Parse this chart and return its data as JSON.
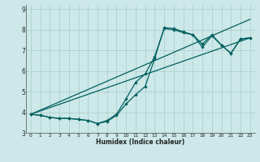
{
  "title": "",
  "xlabel": "Humidex (Indice chaleur)",
  "bg_color": "#cce8e8",
  "grid_color": "#aacaca",
  "line_color": "#006060",
  "xlim": [
    -0.5,
    23.5
  ],
  "ylim": [
    3,
    9.2
  ],
  "yticks": [
    3,
    4,
    5,
    6,
    7,
    8,
    9
  ],
  "xticks": [
    0,
    1,
    2,
    3,
    4,
    5,
    6,
    7,
    8,
    9,
    10,
    11,
    12,
    13,
    14,
    15,
    16,
    17,
    18,
    19,
    20,
    21,
    22,
    23
  ],
  "series1_x": [
    0,
    1,
    2,
    3,
    4,
    5,
    6,
    7,
    8,
    9,
    10,
    11,
    12,
    13,
    14,
    15,
    16,
    17,
    18,
    19,
    20,
    21,
    22,
    23
  ],
  "series1_y": [
    3.9,
    3.85,
    3.75,
    3.7,
    3.7,
    3.65,
    3.6,
    3.45,
    3.6,
    3.9,
    4.65,
    5.45,
    5.85,
    6.7,
    8.05,
    8.0,
    7.85,
    7.75,
    7.15,
    7.7,
    7.25,
    6.85,
    7.55,
    7.6
  ],
  "series2_x": [
    0,
    1,
    2,
    3,
    4,
    5,
    6,
    7,
    8,
    9,
    10,
    11,
    12,
    13,
    14,
    15,
    16,
    17,
    18,
    19,
    20,
    21,
    22,
    23
  ],
  "series2_y": [
    3.9,
    3.85,
    3.75,
    3.7,
    3.7,
    3.65,
    3.6,
    3.45,
    3.55,
    3.85,
    4.4,
    4.85,
    5.25,
    6.6,
    8.1,
    8.05,
    7.9,
    7.75,
    7.3,
    7.75,
    7.25,
    6.85,
    7.55,
    7.6
  ],
  "trendline1_x": [
    0,
    23
  ],
  "trendline1_y": [
    3.9,
    8.5
  ],
  "trendline2_x": [
    0,
    23
  ],
  "trendline2_y": [
    3.9,
    7.6
  ]
}
